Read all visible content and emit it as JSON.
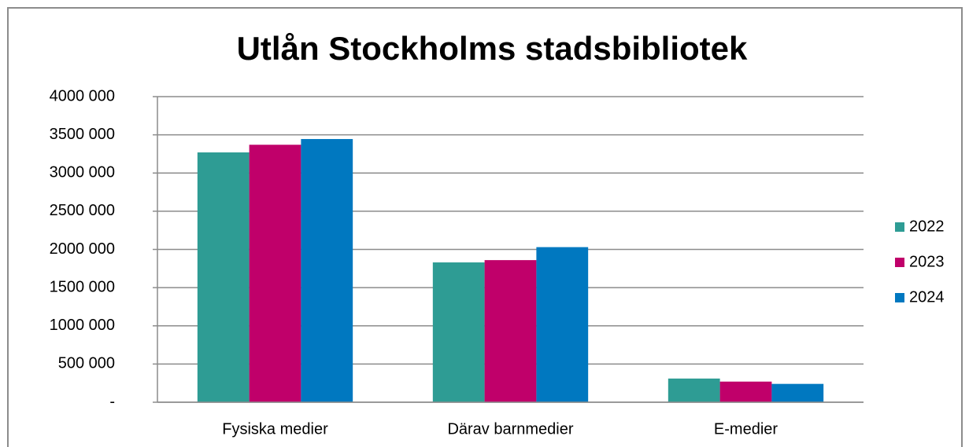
{
  "chart_data": {
    "type": "bar",
    "title": "Utlån Stockholms stadsbibliotek",
    "categories": [
      "Fysiska medier",
      "Därav barnmedier",
      "E-medier"
    ],
    "series": [
      {
        "name": "2022",
        "color": "#2e9c94",
        "values": [
          3270000,
          1830000,
          310000
        ]
      },
      {
        "name": "2023",
        "color": "#c0006a",
        "values": [
          3370000,
          1860000,
          270000
        ]
      },
      {
        "name": "2024",
        "color": "#0078c0",
        "values": [
          3445000,
          2030000,
          240000
        ]
      }
    ],
    "ylim": [
      0,
      4000000
    ],
    "yticks": [
      {
        "value": 0,
        "label": "-"
      },
      {
        "value": 500000,
        "label": "500 000"
      },
      {
        "value": 1000000,
        "label": "1000 000"
      },
      {
        "value": 1500000,
        "label": "1500 000"
      },
      {
        "value": 2000000,
        "label": "2000 000"
      },
      {
        "value": 2500000,
        "label": "2500 000"
      },
      {
        "value": 3000000,
        "label": "3000 000"
      },
      {
        "value": 3500000,
        "label": "3500 000"
      },
      {
        "value": 4000000,
        "label": "4000 000"
      }
    ],
    "grid": true,
    "legend": "right"
  }
}
